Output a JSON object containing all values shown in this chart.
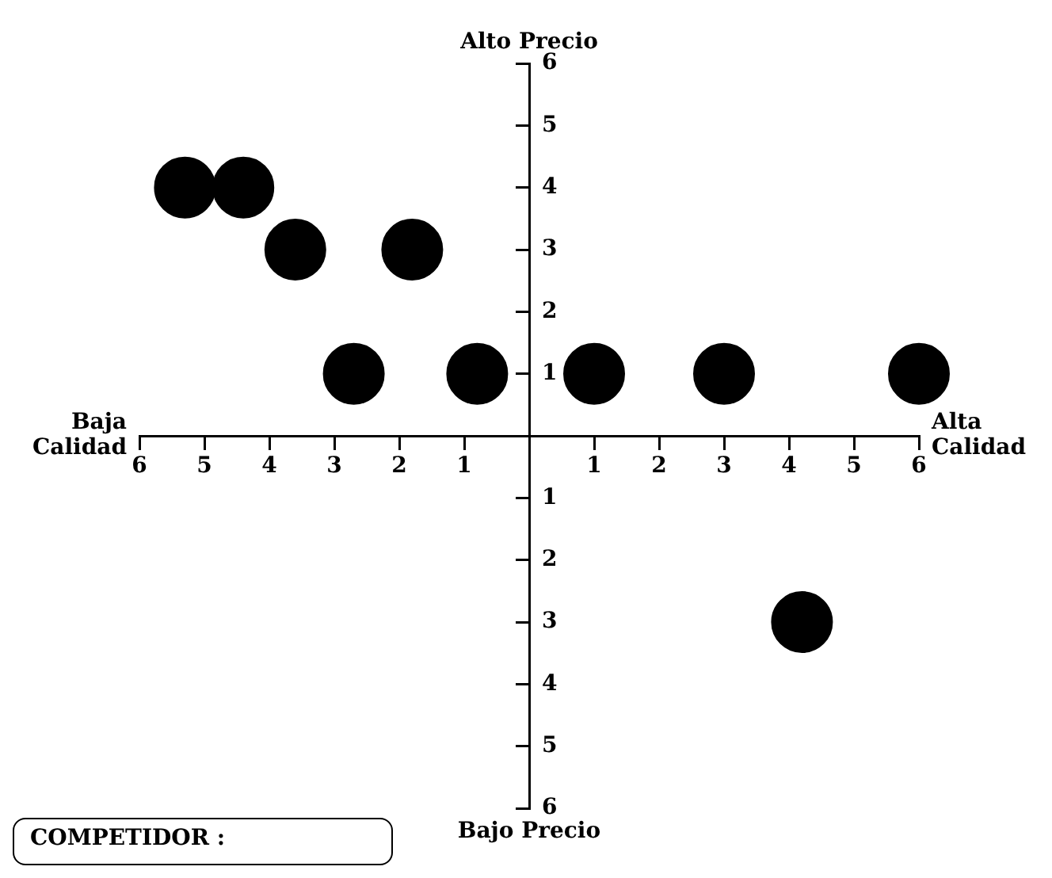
{
  "chart_data": {
    "type": "scatter",
    "xlabel": "Alta Calidad",
    "ylabel": "Alto Precio",
    "annotations": [
      "Baja Calidad",
      "Bajo Precio",
      "COMPETIDOR :"
    ],
    "series": [
      {
        "color": "#000000",
        "x": [
          -5.3,
          -4.4,
          -3.6,
          -1.8,
          -2.7,
          -0.8,
          1,
          3,
          6,
          4.2
        ],
        "values": [
          4,
          4,
          3,
          3,
          1,
          1,
          1,
          1,
          1,
          -3
        ]
      }
    ],
    "xlim": [
      -6,
      6
    ],
    "ylim": [
      -6,
      6
    ],
    "xticks": [
      {
        "value": -6,
        "label": "6"
      },
      {
        "value": -5,
        "label": "5"
      },
      {
        "value": -4,
        "label": "4"
      },
      {
        "value": -3,
        "label": "3"
      },
      {
        "value": -2,
        "label": "2"
      },
      {
        "value": -1,
        "label": "1"
      },
      1,
      2,
      3,
      4,
      5,
      6
    ],
    "yticks": [
      {
        "value": -6,
        "label": "6"
      },
      {
        "value": -5,
        "label": "5"
      },
      {
        "value": -4,
        "label": "4"
      },
      {
        "value": -3,
        "label": "3"
      },
      {
        "value": -2,
        "label": "2"
      },
      {
        "value": -1,
        "label": "1"
      },
      1,
      2,
      3,
      4,
      5,
      6
    ],
    "marker": "circle"
  }
}
